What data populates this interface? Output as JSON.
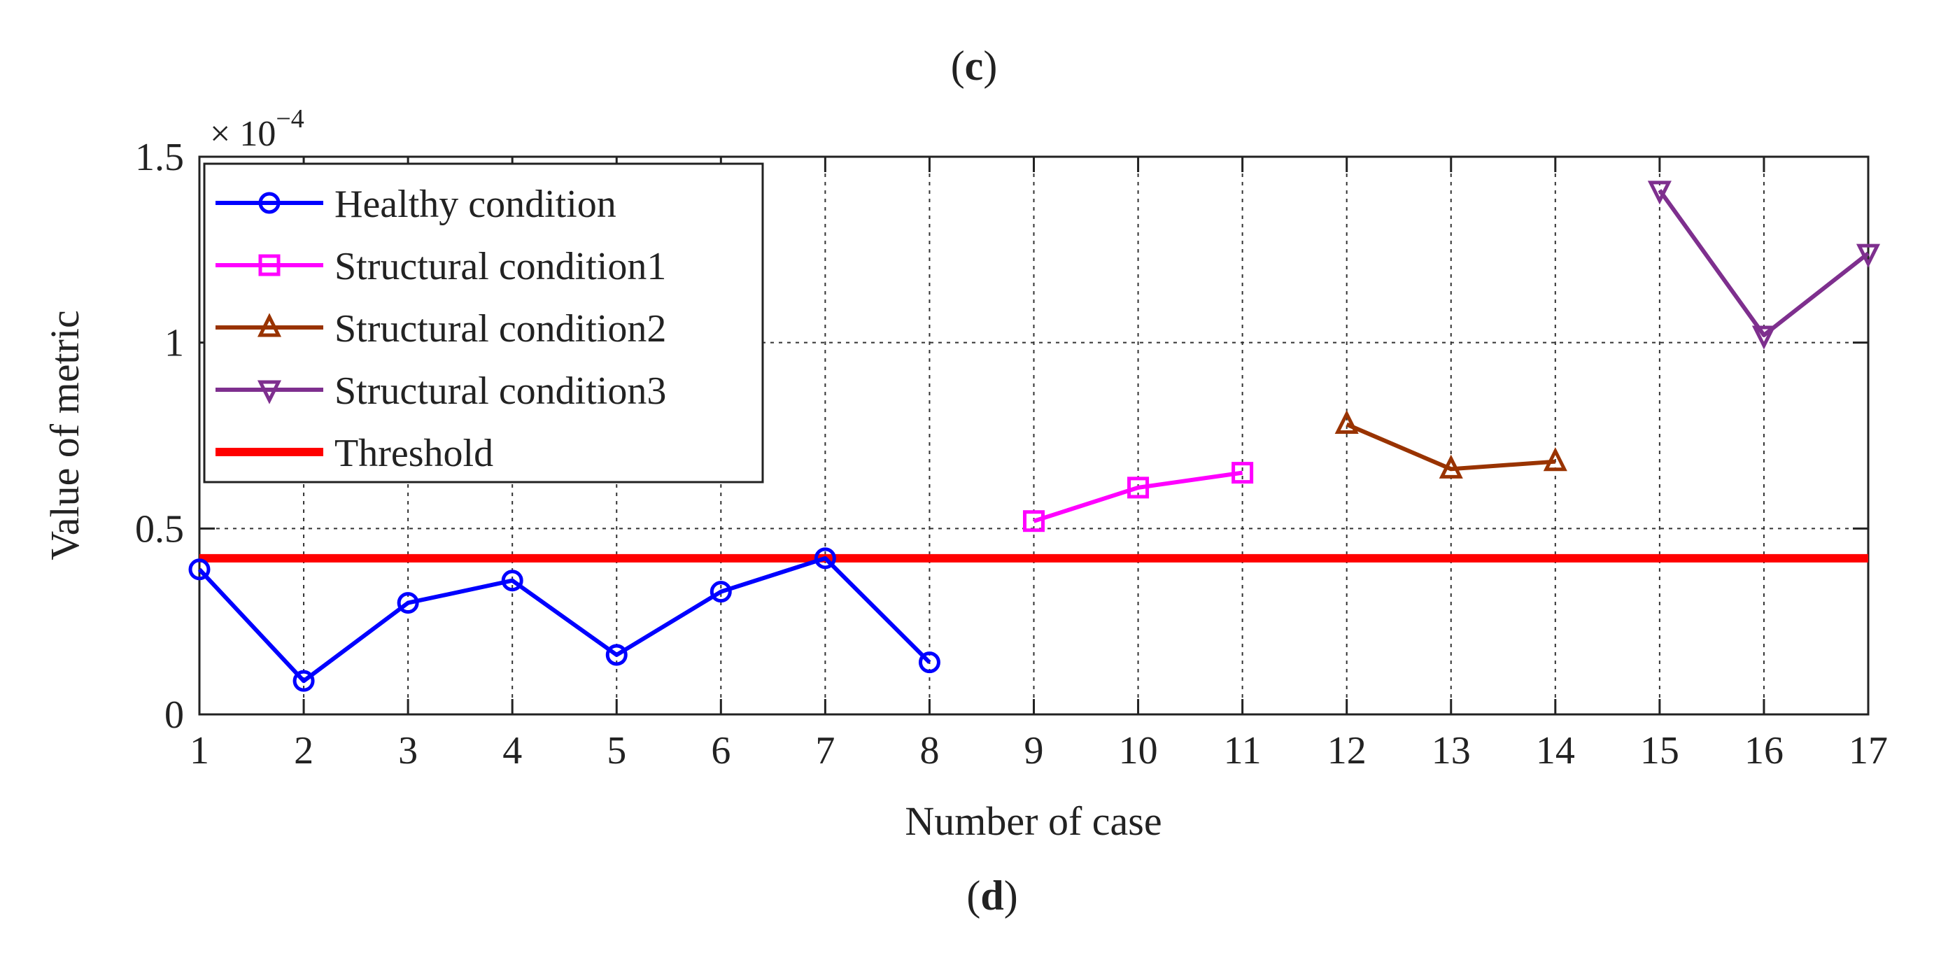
{
  "panel_labels": {
    "top": "c",
    "bottom": "d"
  },
  "colors": {
    "healthy": "#0000ff",
    "structural1": "#ff00ff",
    "structural2": "#993300",
    "structural3": "#7e2f8e",
    "threshold": "#ff0000",
    "grid": "#333333",
    "axis": "#222222"
  },
  "chart_data": {
    "type": "line",
    "title": "",
    "xlabel": "Number of case",
    "ylabel": "Value of metric",
    "xlim": [
      1,
      17
    ],
    "ylim": [
      0,
      1.5
    ],
    "y_exponent_label": "× 10",
    "y_exponent_power": "−4",
    "grid": true,
    "legend_position": "top-left",
    "x_ticks": [
      1,
      2,
      3,
      4,
      5,
      6,
      7,
      8,
      9,
      10,
      11,
      12,
      13,
      14,
      15,
      16,
      17
    ],
    "y_ticks": [
      {
        "value": 0,
        "label": "0"
      },
      {
        "value": 0.5,
        "label": "0.5"
      },
      {
        "value": 1.0,
        "label": "1"
      },
      {
        "value": 1.5,
        "label": "1.5"
      }
    ],
    "series": [
      {
        "name": "Healthy condition",
        "key": "healthy",
        "marker": "circle",
        "x": [
          1,
          2,
          3,
          4,
          5,
          6,
          7,
          8
        ],
        "y": [
          0.39,
          0.09,
          0.3,
          0.36,
          0.16,
          0.33,
          0.42,
          0.14
        ]
      },
      {
        "name": "Structural condition1",
        "key": "structural1",
        "marker": "square",
        "x": [
          9,
          10,
          11
        ],
        "y": [
          0.52,
          0.61,
          0.65
        ]
      },
      {
        "name": "Structural condition2",
        "key": "structural2",
        "marker": "triangle-up",
        "x": [
          12,
          13,
          14
        ],
        "y": [
          0.78,
          0.66,
          0.68
        ]
      },
      {
        "name": "Structural condition3",
        "key": "structural3",
        "marker": "triangle-down",
        "x": [
          15,
          16,
          17
        ],
        "y": [
          1.41,
          1.02,
          1.24
        ]
      },
      {
        "name": "Threshold",
        "key": "threshold",
        "marker": "none",
        "x": [
          1,
          17
        ],
        "y": [
          0.42,
          0.42
        ]
      }
    ]
  }
}
